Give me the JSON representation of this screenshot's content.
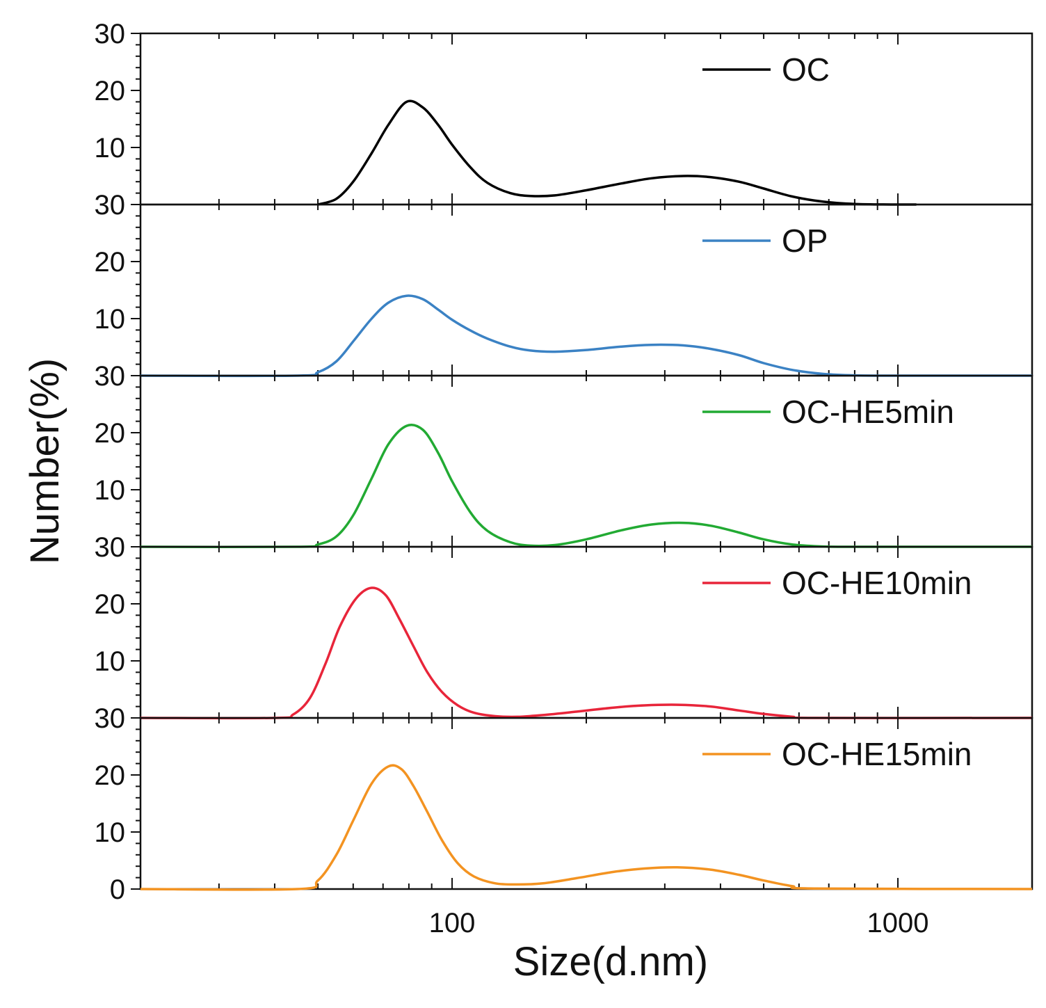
{
  "chart_data": {
    "type": "line",
    "xlabel": "Size(d.nm)",
    "ylabel": "Number(%)",
    "x_scale": "log",
    "xlim": [
      20,
      2000
    ],
    "x_tick_labels": [
      "100",
      "1000"
    ],
    "grid": false,
    "legend_placement": "top-right of each panel",
    "panels": [
      {
        "name": "OC",
        "color": "#000000",
        "ylim": [
          0,
          30
        ],
        "y_tick_labels": [
          "30",
          "20",
          "10"
        ],
        "series": [
          {
            "name": "OC",
            "x": [
              50,
              55,
              60,
              66,
              72,
              79,
              86,
              93,
              100,
              110,
              120,
              135,
              150,
              170,
              200,
              240,
              280,
              330,
              380,
              440,
              500,
              580,
              680,
              800,
              1000,
              1100
            ],
            "y": [
              0,
              1,
              4,
              9,
              14,
              18,
              17,
              14,
              10.5,
              6.5,
              3.8,
              2,
              1.5,
              1.6,
              2.5,
              3.7,
              4.6,
              5,
              4.8,
              4,
              2.8,
              1.4,
              0.5,
              0.1,
              0,
              0
            ]
          }
        ]
      },
      {
        "name": "OP",
        "color": "#3b82c4",
        "ylim": [
          0,
          30
        ],
        "y_tick_labels": [
          "30",
          "20",
          "10"
        ],
        "series": [
          {
            "name": "OP",
            "x": [
              20,
              45,
              50,
              55,
              60,
              66,
              72,
              79,
              86,
              93,
              100,
              110,
              120,
              135,
              150,
              170,
              200,
              240,
              280,
              330,
              380,
              440,
              500,
              580,
              680,
              800,
              1000,
              2000
            ],
            "y": [
              0,
              0,
              0.6,
              2.5,
              6,
              10,
              12.8,
              14,
              13.4,
              11.6,
              9.8,
              7.9,
              6.5,
              5.1,
              4.4,
              4.2,
              4.5,
              5.1,
              5.4,
              5.3,
              4.7,
              3.6,
              2.2,
              1,
              0.3,
              0.05,
              0,
              0
            ]
          }
        ]
      },
      {
        "name": "OC-HE5min",
        "color": "#22aa33",
        "ylim": [
          0,
          30
        ],
        "y_tick_labels": [
          "30",
          "20",
          "10"
        ],
        "series": [
          {
            "name": "OC-HE5min",
            "x": [
              20,
              45,
              50,
              55,
              60,
              66,
              72,
              79,
              86,
              93,
              100,
              110,
              120,
              135,
              150,
              170,
              200,
              240,
              280,
              330,
              380,
              440,
              500,
              580,
              680,
              800,
              1000,
              2000
            ],
            "y": [
              0,
              0,
              0.4,
              1.8,
              5.5,
              12,
              18,
              21.2,
              20.5,
              16.5,
              11.5,
              6,
              2.8,
              0.8,
              0.2,
              0.3,
              1.3,
              2.9,
              3.9,
              4.2,
              3.7,
              2.5,
              1.3,
              0.4,
              0.05,
              0,
              0,
              0
            ]
          }
        ]
      },
      {
        "name": "OC-HE10min",
        "color": "#e8253a",
        "ylim": [
          0,
          30
        ],
        "y_tick_labels": [
          "30",
          "20",
          "10"
        ],
        "series": [
          {
            "name": "OC-HE10min",
            "x": [
              20,
              40,
              44,
              48,
              52,
              56,
              61,
              66,
              71,
              76,
              82,
              88,
              95,
              103,
              112,
              125,
              140,
              160,
              190,
              230,
              270,
              320,
              380,
              440,
              500,
              580,
              650,
              2000
            ],
            "y": [
              0,
              0,
              0.6,
              3.5,
              9.5,
              16,
              21,
              22.8,
              21.5,
              17.5,
              12.5,
              8,
              4.5,
              2.2,
              0.9,
              0.3,
              0.2,
              0.5,
              1.1,
              1.8,
              2.2,
              2.3,
              2,
              1.3,
              0.7,
              0.2,
              0,
              0
            ]
          }
        ]
      },
      {
        "name": "OC-HE15min",
        "color": "#f39321",
        "ylim": [
          0,
          30
        ],
        "y_tick_labels": [
          "30",
          "20",
          "10",
          "0"
        ],
        "series": [
          {
            "name": "OC-HE15min",
            "x": [
              20,
              45,
              50,
              55,
              60,
              66,
              72,
              77,
              82,
              88,
              95,
              103,
              112,
              125,
              140,
              160,
              190,
              230,
              270,
              320,
              380,
              440,
              500,
              580,
              650,
              2000
            ],
            "y": [
              0,
              0,
              1.5,
              6,
              12,
              18.5,
              21.5,
              21,
              18,
              13.5,
              8.5,
              4.5,
              2.2,
              1,
              0.8,
              1,
              1.9,
              3,
              3.6,
              3.8,
              3.4,
              2.5,
              1.5,
              0.5,
              0.1,
              0
            ]
          }
        ]
      }
    ]
  }
}
